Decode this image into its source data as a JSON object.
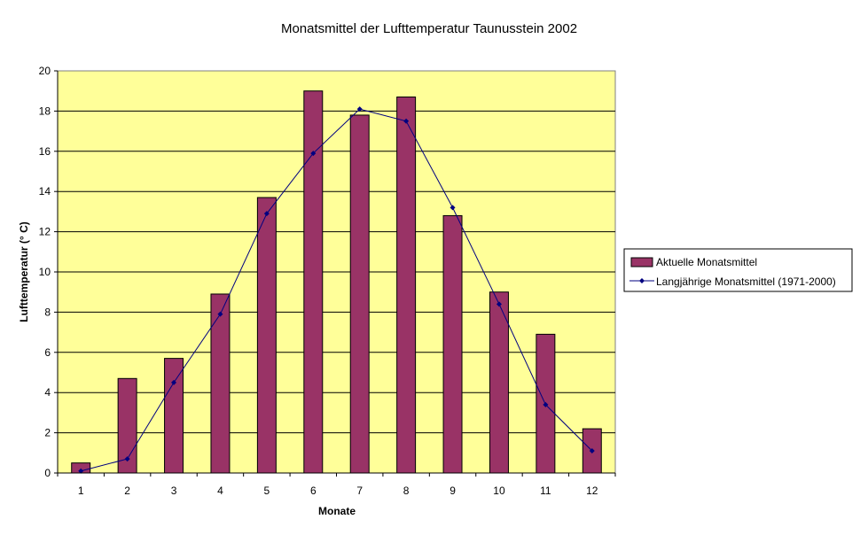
{
  "chart_data": {
    "type": "bar",
    "title": "Monatsmittel der Lufttemperatur  Taunusstein 2002",
    "xlabel": "Monate",
    "ylabel": "Lufttemperatur (° C)",
    "categories": [
      "1",
      "2",
      "3",
      "4",
      "5",
      "6",
      "7",
      "8",
      "9",
      "10",
      "11",
      "12"
    ],
    "ylim": [
      0,
      20
    ],
    "yticks": [
      0,
      2,
      4,
      6,
      8,
      10,
      12,
      14,
      16,
      18,
      20
    ],
    "grid": true,
    "legend_position": "right",
    "plot_background": "#ffff99",
    "series": [
      {
        "name": "Aktuelle Monatsmittel",
        "type": "bar",
        "color": "#993366",
        "values": [
          0.5,
          4.7,
          5.7,
          8.9,
          13.7,
          19.0,
          17.8,
          18.7,
          12.8,
          9.0,
          6.9,
          2.2
        ]
      },
      {
        "name": "Langjährige Monatsmittel (1971-2000)",
        "type": "line",
        "color": "#000080",
        "values": [
          0.1,
          0.7,
          4.5,
          7.9,
          12.9,
          15.9,
          18.1,
          17.5,
          13.2,
          8.4,
          3.4,
          1.1
        ]
      }
    ]
  }
}
